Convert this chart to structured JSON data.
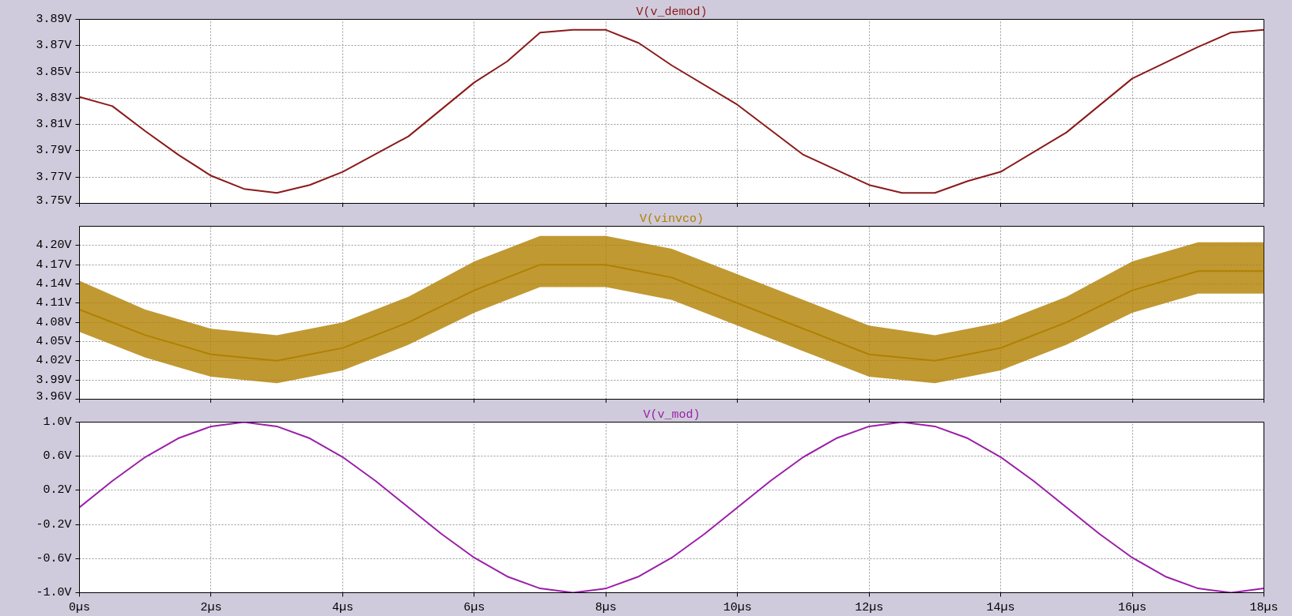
{
  "chart_data": [
    {
      "type": "line",
      "title": "V(v_demod)",
      "grid": true,
      "tick_labels": "y",
      "x": [
        0,
        0.5,
        1,
        1.5,
        2,
        2.5,
        3,
        3.5,
        4,
        5,
        6,
        6.5,
        7,
        7.5,
        8,
        8.5,
        9,
        10,
        11,
        12,
        12.5,
        13,
        13.5,
        14,
        15,
        16,
        17,
        17.5,
        18
      ],
      "series": [
        {
          "color": "#8b1a1a",
          "values": [
            3.831,
            3.824,
            3.805,
            3.787,
            3.771,
            3.761,
            3.758,
            3.764,
            3.774,
            3.801,
            3.842,
            3.858,
            3.88,
            3.882,
            3.882,
            3.872,
            3.855,
            3.825,
            3.787,
            3.764,
            3.758,
            3.758,
            3.767,
            3.774,
            3.804,
            3.845,
            3.869,
            3.88,
            3.882
          ]
        }
      ],
      "xlim": [
        0,
        18
      ],
      "ylim": [
        3.75,
        3.89
      ],
      "xticks": [
        0,
        2,
        4,
        6,
        8,
        10,
        12,
        14,
        16,
        18
      ],
      "yticks": [
        {
          "value": 3.75,
          "label": "3.75V"
        },
        {
          "value": 3.77,
          "label": "3.77V"
        },
        {
          "value": 3.79,
          "label": "3.79V"
        },
        {
          "value": 3.81,
          "label": "3.81V"
        },
        {
          "value": 3.83,
          "label": "3.83V"
        },
        {
          "value": 3.85,
          "label": "3.85V"
        },
        {
          "value": 3.87,
          "label": "3.87V"
        },
        {
          "value": 3.89,
          "label": "3.89V"
        }
      ]
    },
    {
      "type": "line",
      "title": "V(vinvco)",
      "grid": true,
      "tick_labels": "y",
      "x": [
        0,
        1,
        2,
        3,
        4,
        5,
        6,
        7,
        8,
        9,
        10,
        11,
        12,
        13,
        14,
        15,
        16,
        17,
        18
      ],
      "series": [
        {
          "color": "#b08000",
          "values": [
            4.1,
            4.06,
            4.03,
            4.02,
            4.04,
            4.08,
            4.13,
            4.17,
            4.17,
            4.15,
            4.11,
            4.07,
            4.03,
            4.02,
            4.04,
            4.08,
            4.13,
            4.16,
            4.16
          ],
          "lower": [
            4.065,
            4.025,
            3.995,
            3.985,
            4.005,
            4.045,
            4.095,
            4.135,
            4.135,
            4.115,
            4.075,
            4.035,
            3.995,
            3.985,
            4.005,
            4.045,
            4.095,
            4.125,
            4.125
          ],
          "upper": [
            4.145,
            4.1,
            4.07,
            4.06,
            4.08,
            4.12,
            4.175,
            4.215,
            4.215,
            4.195,
            4.155,
            4.115,
            4.075,
            4.06,
            4.08,
            4.12,
            4.175,
            4.205,
            4.205
          ]
        }
      ],
      "xlim": [
        0,
        18
      ],
      "ylim": [
        3.96,
        4.23
      ],
      "xticks": [
        0,
        2,
        4,
        6,
        8,
        10,
        12,
        14,
        16,
        18
      ],
      "yticks": [
        {
          "value": 3.96,
          "label": "3.96V"
        },
        {
          "value": 3.99,
          "label": "3.99V"
        },
        {
          "value": 4.02,
          "label": "4.02V"
        },
        {
          "value": 4.05,
          "label": "4.05V"
        },
        {
          "value": 4.08,
          "label": "4.08V"
        },
        {
          "value": 4.11,
          "label": "4.11V"
        },
        {
          "value": 4.14,
          "label": "4.14V"
        },
        {
          "value": 4.17,
          "label": "4.17V"
        },
        {
          "value": 4.2,
          "label": "4.20V"
        }
      ]
    },
    {
      "type": "line",
      "title": "V(v_mod)",
      "grid": true,
      "x": [
        0,
        0.5,
        1,
        1.5,
        2,
        2.5,
        3,
        3.5,
        4,
        4.5,
        5,
        5.5,
        6,
        6.5,
        7,
        7.5,
        8,
        8.5,
        9,
        9.5,
        10,
        10.5,
        11,
        11.5,
        12,
        12.5,
        13,
        13.5,
        14,
        14.5,
        15,
        15.5,
        16,
        16.5,
        17,
        17.5,
        18
      ],
      "series": [
        {
          "color": "#9b1fa8",
          "values": [
            0,
            0.31,
            0.59,
            0.81,
            0.95,
            1.0,
            0.95,
            0.81,
            0.59,
            0.31,
            0,
            -0.31,
            -0.59,
            -0.81,
            -0.95,
            -1.0,
            -0.95,
            -0.81,
            -0.59,
            -0.31,
            0,
            0.31,
            0.59,
            0.81,
            0.95,
            1.0,
            0.95,
            0.81,
            0.59,
            0.31,
            0,
            -0.31,
            -0.59,
            -0.81,
            -0.95,
            -1.0,
            -0.95
          ]
        }
      ],
      "xlim": [
        0,
        18
      ],
      "ylim": [
        -1.0,
        1.0
      ],
      "xticks": [
        {
          "value": 0,
          "label": "0µs"
        },
        {
          "value": 2,
          "label": "2µs"
        },
        {
          "value": 4,
          "label": "4µs"
        },
        {
          "value": 6,
          "label": "6µs"
        },
        {
          "value": 8,
          "label": "8µs"
        },
        {
          "value": 10,
          "label": "10µs"
        },
        {
          "value": 12,
          "label": "12µs"
        },
        {
          "value": 14,
          "label": "14µs"
        },
        {
          "value": 16,
          "label": "16µs"
        },
        {
          "value": 18,
          "label": "18µs"
        }
      ],
      "yticks": [
        {
          "value": -1.0,
          "label": "-1.0V"
        },
        {
          "value": -0.6,
          "label": "-0.6V"
        },
        {
          "value": -0.2,
          "label": "-0.2V"
        },
        {
          "value": 0.2,
          "label": "0.2V"
        },
        {
          "value": 0.6,
          "label": "0.6V"
        },
        {
          "value": 1.0,
          "label": "1.0V"
        }
      ]
    }
  ]
}
